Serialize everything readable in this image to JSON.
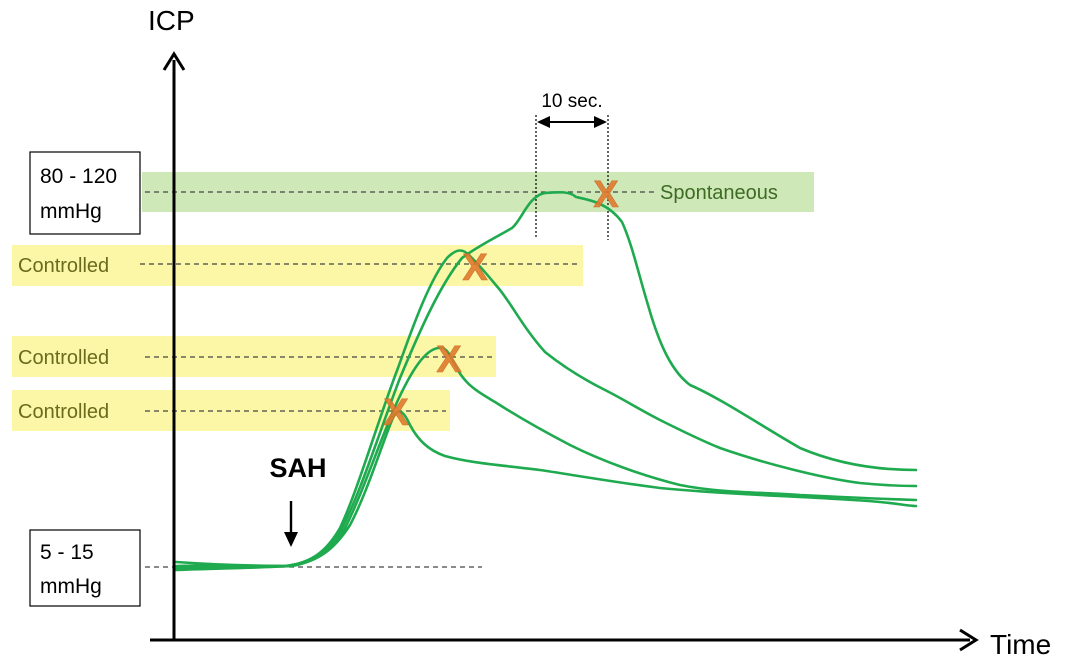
{
  "axes": {
    "y_label": "ICP",
    "x_label": "Time"
  },
  "pressure_boxes": {
    "high": {
      "line1": "80 - 120",
      "line2": "mmHg"
    },
    "low": {
      "line1": "5 - 15",
      "line2": "mmHg"
    }
  },
  "event_label": "SAH",
  "interval_label": "10 sec.",
  "thresholds": [
    {
      "label": "Spontaneous",
      "kind": "spontaneous"
    },
    {
      "label": "Controlled",
      "kind": "controlled"
    },
    {
      "label": "Controlled",
      "kind": "controlled"
    },
    {
      "label": "Controlled",
      "kind": "controlled"
    }
  ],
  "markers": [
    "X",
    "X",
    "X",
    "X"
  ],
  "colors": {
    "curve": "#1faa4f",
    "spontaneous_band": "#cfe8b8",
    "controlled_band": "#fbf7a6",
    "spontaneous_text": "#3d6b24",
    "controlled_text": "#6b6b1e",
    "marker": "#e07a2e",
    "axis": "#000000"
  }
}
